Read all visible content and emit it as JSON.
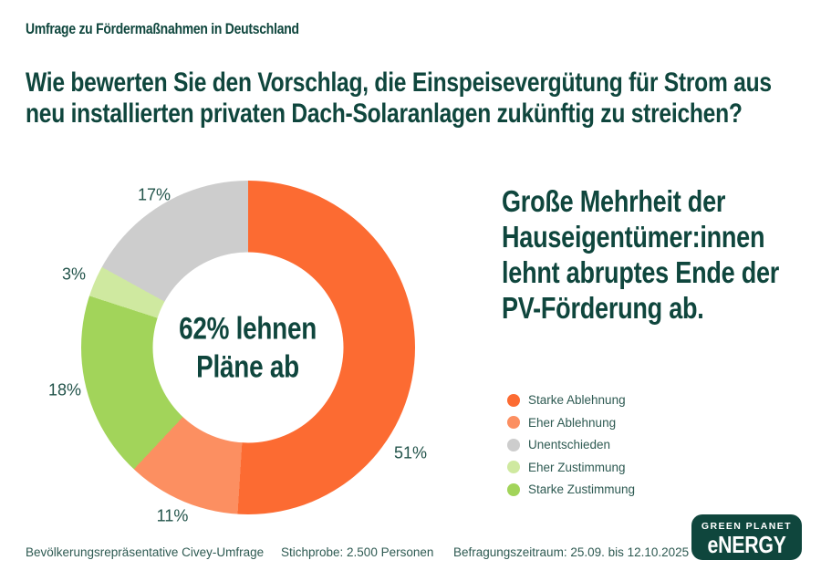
{
  "eyebrow": "Umfrage zu Fördermaßnahmen in Deutschland",
  "title": {
    "line1": "Wie bewerten Sie den Vorschlag, die Einspeisevergütung für Strom aus",
    "line2": "neu installierten privaten Dach-Solaranlagen zukünftig zu streichen?"
  },
  "headline": {
    "line1": "Große Mehrheit der",
    "line2": "Hauseigentümer:innen",
    "line3": "lehnt abruptes Ende der",
    "line4": "PV-Förderung ab."
  },
  "chart_data": {
    "type": "pie",
    "variant": "donut",
    "title": "Wie bewerten Sie den Vorschlag, die Einspeisevergütung für Strom aus neu installierten privaten Dach-Solaranlagen zukünftig zu streichen?",
    "start_angle_deg": 0,
    "direction": "clockwise",
    "center_label": {
      "line1": "62% lehnen",
      "line2": "Pläne ab"
    },
    "segments": [
      {
        "label": "Starke Ablehnung",
        "value": 51,
        "pct_label": "51%",
        "color": "#fc6b32"
      },
      {
        "label": "Eher Ablehnung",
        "value": 11,
        "pct_label": "11%",
        "color": "#fc8f61"
      },
      {
        "label": "Starke Zustimmung",
        "value": 18,
        "pct_label": "18%",
        "color": "#a2d45a"
      },
      {
        "label": "Eher Zustimmung",
        "value": 3,
        "pct_label": "3%",
        "color": "#cfe9a0"
      },
      {
        "label": "Unentschieden",
        "value": 17,
        "pct_label": "17%",
        "color": "#cdcdcd"
      }
    ]
  },
  "legend": {
    "items": [
      {
        "label": "Starke Ablehnung",
        "color": "#fc6b32"
      },
      {
        "label": "Eher Ablehnung",
        "color": "#fc8f61"
      },
      {
        "label": "Unentschieden",
        "color": "#cdcdcd"
      },
      {
        "label": "Eher Zustimmung",
        "color": "#cfe9a0"
      },
      {
        "label": "Starke Zustimmung",
        "color": "#a2d45a"
      }
    ]
  },
  "footer": {
    "survey": "Bevölkerungsrepräsentative Civey-Umfrage",
    "sample": "Stichprobe: 2.500 Personen",
    "period": "Befragungszeitraum: 25.09. bis 12.10.2025"
  },
  "logo": {
    "line1": "GREEN PLANET",
    "line2": "eNERGY"
  },
  "colors": {
    "heading_teal": "#0f463d",
    "body_teal": "#2e5a52",
    "background": "#ffffff"
  }
}
